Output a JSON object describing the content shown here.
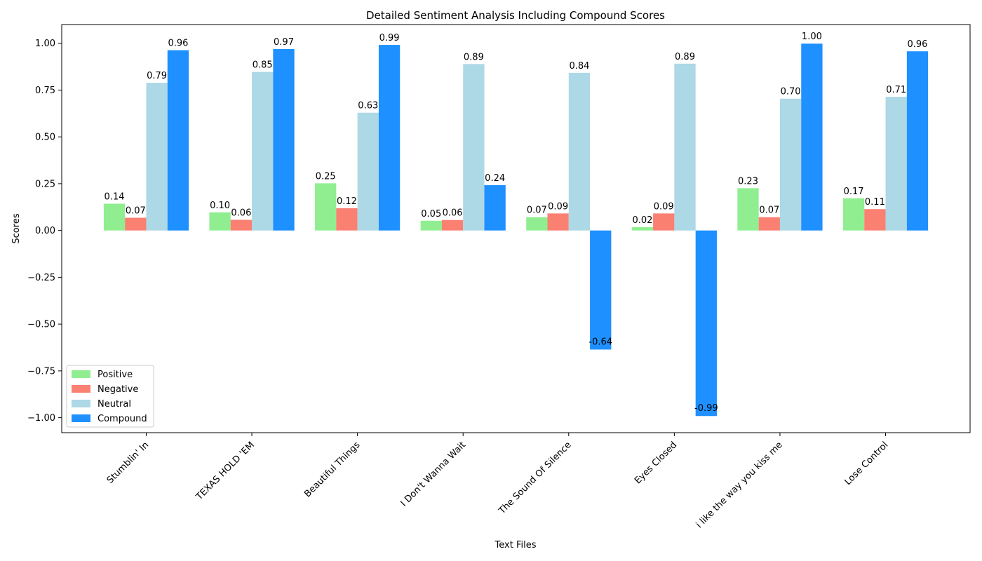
{
  "chart_data": {
    "type": "bar",
    "title": "Detailed Sentiment Analysis Including Compound Scores",
    "xlabel": "Text Files",
    "ylabel": "Scores",
    "ylim": [
      -1.08,
      1.1
    ],
    "yticks": [
      -1.0,
      -0.75,
      -0.5,
      -0.25,
      0.0,
      0.25,
      0.5,
      0.75,
      1.0
    ],
    "ytick_labels": [
      "−1.00",
      "−0.75",
      "−0.50",
      "−0.25",
      "0.00",
      "0.25",
      "0.50",
      "0.75",
      "1.00"
    ],
    "grid": false,
    "legend_position": "lower-left",
    "categories": [
      "Stumblin' In",
      "TEXAS HOLD 'EM",
      "Beautiful Things",
      "I Don't Wanna Wait",
      "The Sound Of Silence",
      "Eyes Closed",
      "i like the way you kiss me",
      "Lose Control"
    ],
    "series": [
      {
        "name": "Positive",
        "color": "#90ee90",
        "values": [
          0.143,
          0.097,
          0.252,
          0.052,
          0.071,
          0.018,
          0.226,
          0.172
        ],
        "labels": [
          "0.14",
          "0.10",
          "0.25",
          "0.05",
          "0.07",
          "0.02",
          "0.23",
          "0.17"
        ]
      },
      {
        "name": "Negative",
        "color": "#fa8072",
        "values": [
          0.068,
          0.057,
          0.119,
          0.056,
          0.091,
          0.091,
          0.071,
          0.114
        ],
        "labels": [
          "0.07",
          "0.06",
          "0.12",
          "0.06",
          "0.09",
          "0.09",
          "0.07",
          "0.11"
        ]
      },
      {
        "name": "Neutral",
        "color": "#add8e6",
        "values": [
          0.789,
          0.847,
          0.629,
          0.889,
          0.842,
          0.891,
          0.704,
          0.714
        ],
        "labels": [
          "0.79",
          "0.85",
          "0.63",
          "0.89",
          "0.84",
          "0.89",
          "0.70",
          "0.71"
        ]
      },
      {
        "name": "Compound",
        "color": "#1e90ff",
        "values": [
          0.963,
          0.969,
          0.991,
          0.242,
          -0.636,
          -0.991,
          0.998,
          0.957
        ],
        "labels": [
          "0.96",
          "0.97",
          "0.99",
          "0.24",
          "-0.64",
          "-0.99",
          "1.00",
          "0.96"
        ]
      }
    ]
  }
}
